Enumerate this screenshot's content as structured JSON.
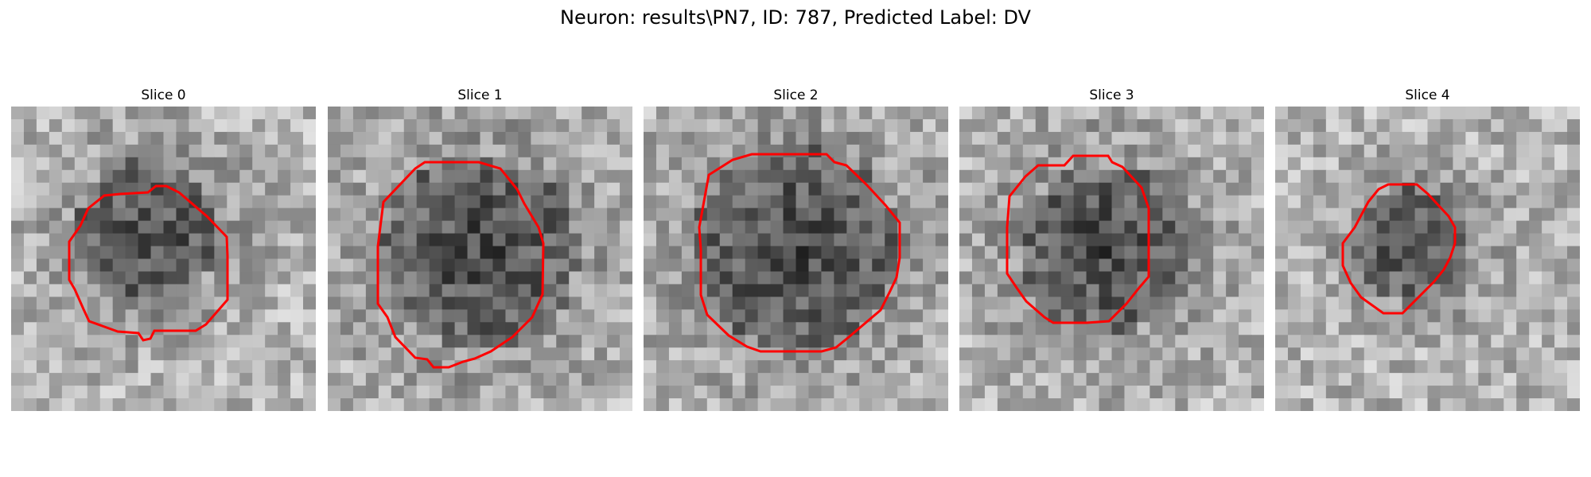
{
  "figure": {
    "title": "Neuron: results\\PN7, ID: 787, Predicted Label: DV"
  },
  "panels": [
    {
      "title": "Slice 0"
    },
    {
      "title": "Slice 1"
    },
    {
      "title": "Slice 2"
    },
    {
      "title": "Slice 3"
    },
    {
      "title": "Slice 4"
    }
  ],
  "colors": {
    "contour": "#ff0000",
    "background": "#ffffff"
  }
}
